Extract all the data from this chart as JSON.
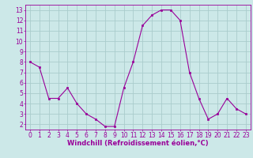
{
  "x": [
    0,
    1,
    2,
    3,
    4,
    5,
    6,
    7,
    8,
    9,
    10,
    11,
    12,
    13,
    14,
    15,
    16,
    17,
    18,
    19,
    20,
    21,
    22,
    23
  ],
  "y": [
    8,
    7.5,
    4.5,
    4.5,
    5.5,
    4,
    3,
    2.5,
    1.8,
    1.8,
    5.5,
    8,
    11.5,
    12.5,
    13,
    13,
    12,
    7,
    4.5,
    2.5,
    3,
    4.5,
    3.5,
    3
  ],
  "line_color": "#990099",
  "marker_color": "#990099",
  "bg_color": "#cce8e8",
  "grid_color": "#aacccc",
  "xlabel": "Windchill (Refroidissement éolien,°C)",
  "xlabel_color": "#990099",
  "xlabel_fontsize": 6.0,
  "tick_color": "#990099",
  "tick_fontsize": 5.5,
  "ylim": [
    1.5,
    13.5
  ],
  "xlim": [
    -0.5,
    23.5
  ],
  "yticks": [
    2,
    3,
    4,
    5,
    6,
    7,
    8,
    9,
    10,
    11,
    12,
    13
  ],
  "xticks": [
    0,
    1,
    2,
    3,
    4,
    5,
    6,
    7,
    8,
    9,
    10,
    11,
    12,
    13,
    14,
    15,
    16,
    17,
    18,
    19,
    20,
    21,
    22,
    23
  ]
}
